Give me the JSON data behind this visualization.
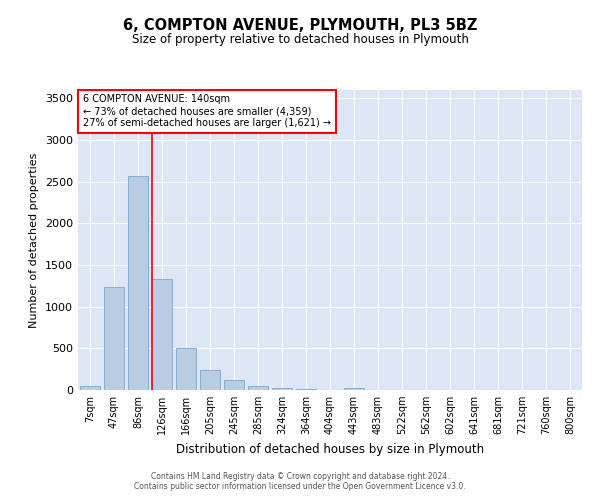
{
  "title": "6, COMPTON AVENUE, PLYMOUTH, PL3 5BZ",
  "subtitle": "Size of property relative to detached houses in Plymouth",
  "xlabel": "Distribution of detached houses by size in Plymouth",
  "ylabel": "Number of detached properties",
  "bar_color": "#b8cce4",
  "bar_edge_color": "#7ba7d0",
  "background_color": "#dce6f5",
  "annotation_line_color": "red",
  "annotation_bin_index": 3,
  "annotation_text_line1": "6 COMPTON AVENUE: 140sqm",
  "annotation_text_line2": "← 73% of detached houses are smaller (4,359)",
  "annotation_text_line3": "27% of semi-detached houses are larger (1,621) →",
  "footer_line1": "Contains HM Land Registry data © Crown copyright and database right 2024.",
  "footer_line2": "Contains public sector information licensed under the Open Government Licence v3.0.",
  "bin_labels": [
    "7sqm",
    "47sqm",
    "86sqm",
    "126sqm",
    "166sqm",
    "205sqm",
    "245sqm",
    "285sqm",
    "324sqm",
    "364sqm",
    "404sqm",
    "443sqm",
    "483sqm",
    "522sqm",
    "562sqm",
    "602sqm",
    "641sqm",
    "681sqm",
    "721sqm",
    "760sqm",
    "800sqm"
  ],
  "bar_heights": [
    50,
    1240,
    2570,
    1330,
    500,
    235,
    120,
    50,
    20,
    10,
    5,
    20,
    5,
    0,
    0,
    0,
    0,
    0,
    0,
    0,
    0
  ],
  "ylim": [
    0,
    3600
  ],
  "yticks": [
    0,
    500,
    1000,
    1500,
    2000,
    2500,
    3000,
    3500
  ]
}
